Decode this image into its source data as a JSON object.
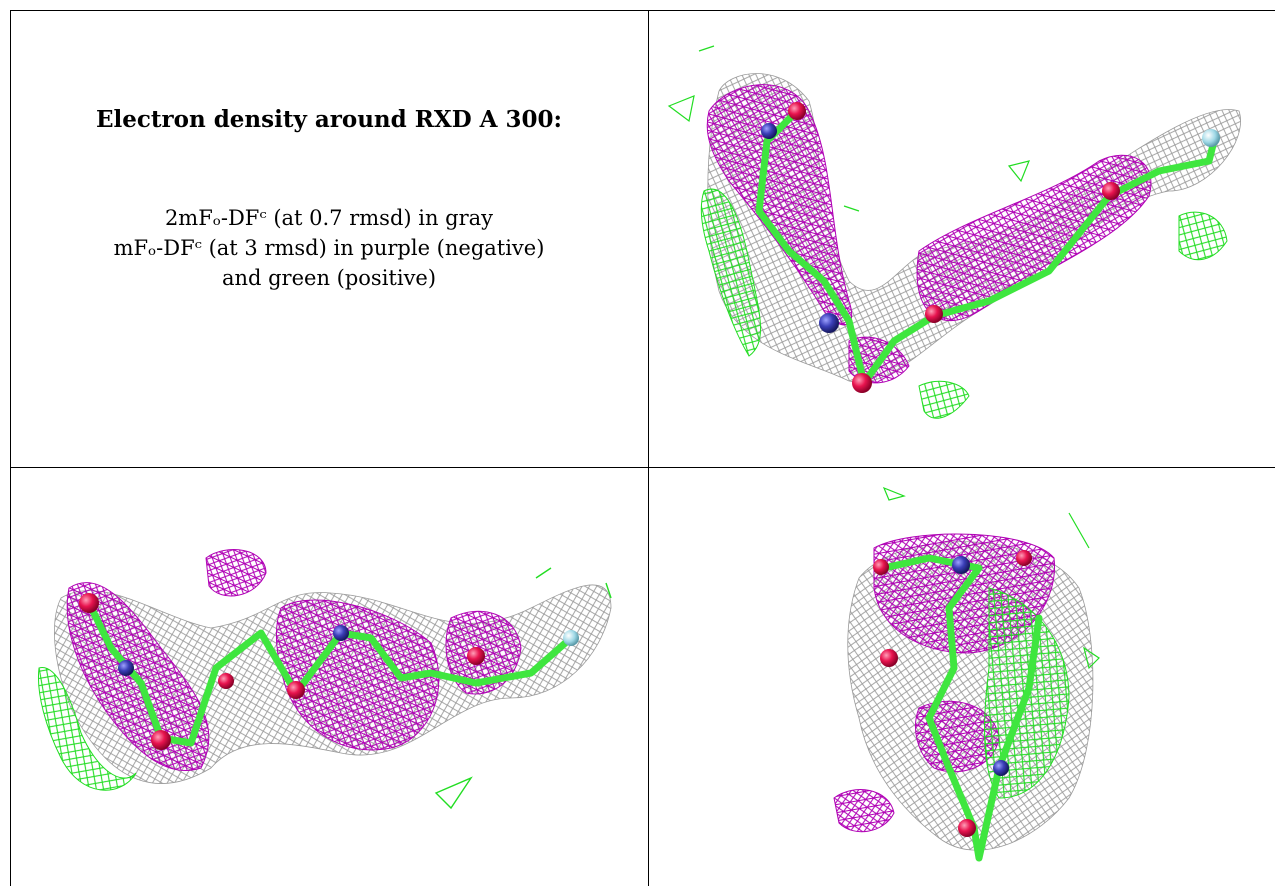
{
  "caption": {
    "title": "Electron density around RXD A 300:",
    "line1": "2mFₒ-DFᶜ (at 0.7 rmsd) in gray",
    "line2": "mFₒ-DFᶜ (at 3 rmsd) in purple (negative)",
    "line3": "and green (positive)"
  },
  "colors": {
    "gray_mesh": "#9a9a9a",
    "purple_mesh": "#b000b5",
    "green_mesh": "#22dd22",
    "bond_green": "#3fe63f",
    "oxygen": "#e8144f",
    "nitrogen": "#3b3fb8",
    "fluorine": "#9ed8e6"
  },
  "panels": [
    {
      "name": "view-top-right"
    },
    {
      "name": "view-bottom-left"
    },
    {
      "name": "view-bottom-right"
    }
  ]
}
